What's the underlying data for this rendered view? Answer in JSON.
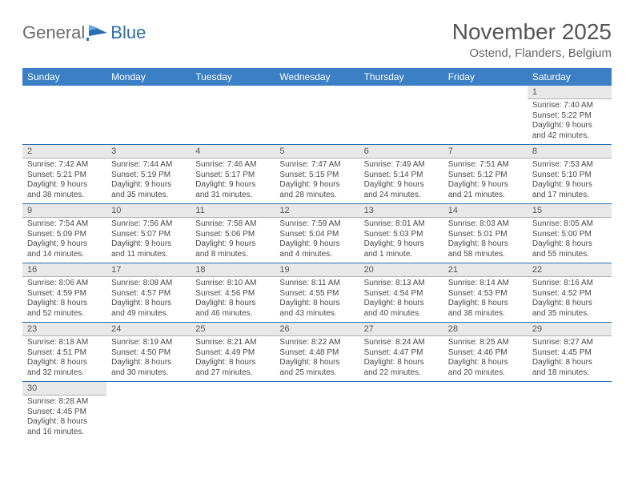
{
  "logo": {
    "word1": "General",
    "word2": "Blue"
  },
  "header": {
    "title": "November 2025",
    "subtitle": "Ostend, Flanders, Belgium"
  },
  "colors": {
    "accent": "#3b7fc4",
    "row_divider": "#2a6db0",
    "header_row_bg": "#e8e8e8",
    "text": "#333333"
  },
  "dayNames": [
    "Sunday",
    "Monday",
    "Tuesday",
    "Wednesday",
    "Thursday",
    "Friday",
    "Saturday"
  ],
  "weeks": [
    [
      null,
      null,
      null,
      null,
      null,
      null,
      {
        "n": "1",
        "sr": "7:40 AM",
        "ss": "5:22 PM",
        "dl": "9 hours and 42 minutes."
      }
    ],
    [
      {
        "n": "2",
        "sr": "7:42 AM",
        "ss": "5:21 PM",
        "dl": "9 hours and 38 minutes."
      },
      {
        "n": "3",
        "sr": "7:44 AM",
        "ss": "5:19 PM",
        "dl": "9 hours and 35 minutes."
      },
      {
        "n": "4",
        "sr": "7:46 AM",
        "ss": "5:17 PM",
        "dl": "9 hours and 31 minutes."
      },
      {
        "n": "5",
        "sr": "7:47 AM",
        "ss": "5:15 PM",
        "dl": "9 hours and 28 minutes."
      },
      {
        "n": "6",
        "sr": "7:49 AM",
        "ss": "5:14 PM",
        "dl": "9 hours and 24 minutes."
      },
      {
        "n": "7",
        "sr": "7:51 AM",
        "ss": "5:12 PM",
        "dl": "9 hours and 21 minutes."
      },
      {
        "n": "8",
        "sr": "7:53 AM",
        "ss": "5:10 PM",
        "dl": "9 hours and 17 minutes."
      }
    ],
    [
      {
        "n": "9",
        "sr": "7:54 AM",
        "ss": "5:09 PM",
        "dl": "9 hours and 14 minutes."
      },
      {
        "n": "10",
        "sr": "7:56 AM",
        "ss": "5:07 PM",
        "dl": "9 hours and 11 minutes."
      },
      {
        "n": "11",
        "sr": "7:58 AM",
        "ss": "5:06 PM",
        "dl": "9 hours and 8 minutes."
      },
      {
        "n": "12",
        "sr": "7:59 AM",
        "ss": "5:04 PM",
        "dl": "9 hours and 4 minutes."
      },
      {
        "n": "13",
        "sr": "8:01 AM",
        "ss": "5:03 PM",
        "dl": "9 hours and 1 minute."
      },
      {
        "n": "14",
        "sr": "8:03 AM",
        "ss": "5:01 PM",
        "dl": "8 hours and 58 minutes."
      },
      {
        "n": "15",
        "sr": "8:05 AM",
        "ss": "5:00 PM",
        "dl": "8 hours and 55 minutes."
      }
    ],
    [
      {
        "n": "16",
        "sr": "8:06 AM",
        "ss": "4:59 PM",
        "dl": "8 hours and 52 minutes."
      },
      {
        "n": "17",
        "sr": "8:08 AM",
        "ss": "4:57 PM",
        "dl": "8 hours and 49 minutes."
      },
      {
        "n": "18",
        "sr": "8:10 AM",
        "ss": "4:56 PM",
        "dl": "8 hours and 46 minutes."
      },
      {
        "n": "19",
        "sr": "8:11 AM",
        "ss": "4:55 PM",
        "dl": "8 hours and 43 minutes."
      },
      {
        "n": "20",
        "sr": "8:13 AM",
        "ss": "4:54 PM",
        "dl": "8 hours and 40 minutes."
      },
      {
        "n": "21",
        "sr": "8:14 AM",
        "ss": "4:53 PM",
        "dl": "8 hours and 38 minutes."
      },
      {
        "n": "22",
        "sr": "8:16 AM",
        "ss": "4:52 PM",
        "dl": "8 hours and 35 minutes."
      }
    ],
    [
      {
        "n": "23",
        "sr": "8:18 AM",
        "ss": "4:51 PM",
        "dl": "8 hours and 32 minutes."
      },
      {
        "n": "24",
        "sr": "8:19 AM",
        "ss": "4:50 PM",
        "dl": "8 hours and 30 minutes."
      },
      {
        "n": "25",
        "sr": "8:21 AM",
        "ss": "4:49 PM",
        "dl": "8 hours and 27 minutes."
      },
      {
        "n": "26",
        "sr": "8:22 AM",
        "ss": "4:48 PM",
        "dl": "8 hours and 25 minutes."
      },
      {
        "n": "27",
        "sr": "8:24 AM",
        "ss": "4:47 PM",
        "dl": "8 hours and 22 minutes."
      },
      {
        "n": "28",
        "sr": "8:25 AM",
        "ss": "4:46 PM",
        "dl": "8 hours and 20 minutes."
      },
      {
        "n": "29",
        "sr": "8:27 AM",
        "ss": "4:45 PM",
        "dl": "8 hours and 18 minutes."
      }
    ],
    [
      {
        "n": "30",
        "sr": "8:28 AM",
        "ss": "4:45 PM",
        "dl": "8 hours and 16 minutes."
      },
      null,
      null,
      null,
      null,
      null,
      null
    ]
  ],
  "labels": {
    "sunrise": "Sunrise: ",
    "sunset": "Sunset: ",
    "daylight": "Daylight: "
  }
}
